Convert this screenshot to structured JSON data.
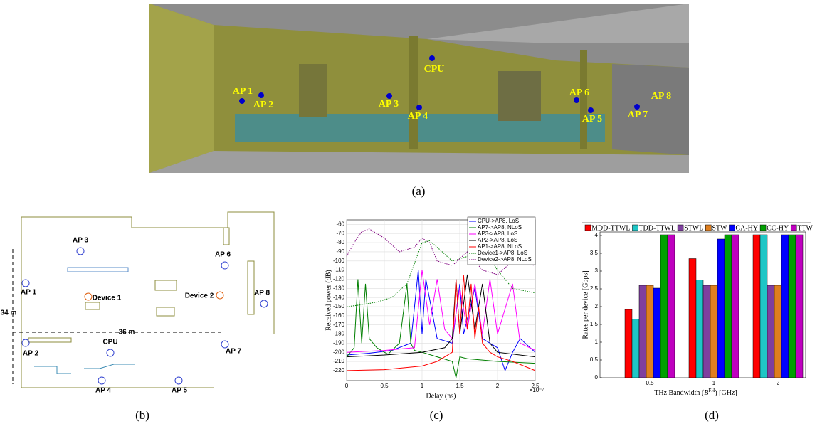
{
  "figure_a": {
    "labels": [
      "AP 1",
      "AP 2",
      "AP 3",
      "AP 4",
      "CPU",
      "AP 6",
      "AP 5",
      "AP 7",
      "AP 8"
    ],
    "caption": "(a)"
  },
  "figure_b": {
    "labels": [
      "AP 3",
      "AP 6",
      "AP 1",
      "Device 1",
      "Device 2",
      "AP 8",
      "CPU",
      "AP 2",
      "AP 7",
      "AP 4",
      "AP 5"
    ],
    "dimension_height": "34 m",
    "dimension_width": "36 m",
    "caption": "(b)"
  },
  "chart_data": [
    {
      "type": "line",
      "caption": "(c)",
      "x_label": "Delay (ns)",
      "y_label": "Received power (dB)",
      "x_offset_label": "×10⁻⁷",
      "xlim": [
        0,
        2.5
      ],
      "ylim": [
        -231,
        -55
      ],
      "xticks": [
        0,
        0.5,
        1,
        1.5,
        2,
        2.5
      ],
      "yticks": [
        -60,
        -70,
        -80,
        -90,
        -100,
        -110,
        -120,
        -130,
        -140,
        -150,
        -160,
        -170,
        -180,
        -190,
        -200,
        -210,
        -220
      ],
      "grid": true,
      "legend": "top-right",
      "series": [
        {
          "name": "CPU->AP8, LoS",
          "color": "#0000ff",
          "dashed": false,
          "x": [
            0,
            0.3,
            0.6,
            0.85,
            0.95,
            1.0,
            1.05,
            1.2,
            1.4,
            1.5,
            1.55,
            1.7,
            1.8,
            1.9,
            2.0,
            2.1,
            2.2,
            2.3,
            2.5
          ],
          "values": [
            -203,
            -201,
            -198,
            -190,
            -110,
            -180,
            -120,
            -185,
            -190,
            -125,
            -180,
            -130,
            -185,
            -190,
            -195,
            -220,
            -200,
            -185,
            -200
          ]
        },
        {
          "name": "AP7->AP8, NLoS",
          "color": "#007f00",
          "dashed": false,
          "x": [
            0,
            0.1,
            0.15,
            0.2,
            0.25,
            0.3,
            0.4,
            0.5,
            0.55,
            0.7,
            0.8,
            0.85,
            0.9,
            1.0,
            1.2,
            1.4,
            1.45,
            1.5,
            1.6,
            2.0,
            2.5
          ],
          "values": [
            -205,
            -195,
            -120,
            -190,
            -125,
            -185,
            -195,
            -200,
            -202,
            -190,
            -125,
            -190,
            -198,
            -200,
            -205,
            -210,
            -228,
            -205,
            -207,
            -210,
            -212
          ]
        },
        {
          "name": "AP3->AP8, LoS",
          "color": "#ff00ff",
          "dashed": false,
          "x": [
            0,
            0.5,
            0.9,
            1.0,
            1.1,
            1.2,
            1.3,
            1.4,
            1.5,
            1.6,
            1.7,
            1.8,
            1.9,
            2.0,
            2.2,
            2.3,
            2.5
          ],
          "values": [
            -200,
            -198,
            -195,
            -110,
            -170,
            -120,
            -175,
            -185,
            -130,
            -175,
            -125,
            -180,
            -120,
            -180,
            -125,
            -190,
            -198
          ]
        },
        {
          "name": "AP2->AP8, LoS",
          "color": "#000000",
          "dashed": false,
          "x": [
            0,
            0.5,
            1.0,
            1.3,
            1.4,
            1.45,
            1.5,
            1.6,
            1.7,
            1.8,
            1.9,
            2.0,
            2.5
          ],
          "values": [
            -205,
            -203,
            -200,
            -195,
            -185,
            -120,
            -180,
            -115,
            -175,
            -125,
            -190,
            -200,
            -205
          ]
        },
        {
          "name": "AP1->AP8, NLoS",
          "color": "#ff0000",
          "dashed": false,
          "x": [
            0,
            0.5,
            1.0,
            1.2,
            1.4,
            1.45,
            1.5,
            1.55,
            1.6,
            1.65,
            1.7,
            1.75,
            1.8,
            1.9,
            2.0,
            2.2,
            2.5
          ],
          "values": [
            -220,
            -219,
            -215,
            -210,
            -200,
            -120,
            -180,
            -115,
            -175,
            -125,
            -185,
            -150,
            -190,
            -200,
            -205,
            -210,
            -220
          ]
        },
        {
          "name": "Device1->AP8, LoS",
          "color": "#007f00",
          "dashed": true,
          "x": [
            0,
            0.2,
            0.4,
            0.6,
            0.8,
            1.0,
            1.1,
            1.2,
            1.4,
            1.6,
            1.8,
            2.0,
            2.2,
            2.5
          ],
          "values": [
            -150,
            -148,
            -145,
            -140,
            -125,
            -80,
            -78,
            -85,
            -100,
            -95,
            -85,
            -110,
            -130,
            -135
          ]
        },
        {
          "name": "Device2->AP8, NLoS",
          "color": "#7f007f",
          "dashed": true,
          "x": [
            0,
            0.1,
            0.2,
            0.3,
            0.5,
            0.7,
            0.9,
            1.0,
            1.1,
            1.2,
            1.4,
            1.6,
            1.8,
            2.0,
            2.2,
            2.5
          ],
          "values": [
            -95,
            -80,
            -68,
            -65,
            -75,
            -90,
            -85,
            -75,
            -80,
            -100,
            -105,
            -90,
            -110,
            -115,
            -100,
            -105
          ]
        }
      ]
    },
    {
      "type": "bar",
      "caption": "(d)",
      "x_label": [
        "THz Bandwidth (",
        "B",
        "FH",
        ") [GHz]"
      ],
      "y_label": "Rates per device [Gbps]",
      "categories": [
        "0.5",
        "1",
        "2"
      ],
      "ylim": [
        0,
        4.1
      ],
      "yticks": [
        0,
        0.5,
        1,
        1.5,
        2,
        2.5,
        3,
        3.5,
        4
      ],
      "legend": "top",
      "series": [
        {
          "name": "MDD-TTWL",
          "color": "#ff0000",
          "values": [
            1.92,
            3.35,
            4.02
          ]
        },
        {
          "name": "TDD-TTWL",
          "color": "#1fc6c6",
          "values": [
            1.65,
            2.75,
            4.02
          ]
        },
        {
          "name": "STWL",
          "color": "#7f3f9f",
          "values": [
            2.6,
            2.6,
            2.6
          ]
        },
        {
          "name": "STW",
          "color": "#df7f1f",
          "values": [
            2.6,
            2.6,
            2.6
          ]
        },
        {
          "name": "CA-HY",
          "color": "#0000ff",
          "values": [
            2.52,
            3.9,
            4.02
          ]
        },
        {
          "name": "CC-HY",
          "color": "#009f00",
          "values": [
            4.02,
            4.02,
            4.02
          ]
        },
        {
          "name": "TTW",
          "color": "#bf00bf",
          "values": [
            4.02,
            4.02,
            4.02
          ]
        }
      ]
    }
  ]
}
